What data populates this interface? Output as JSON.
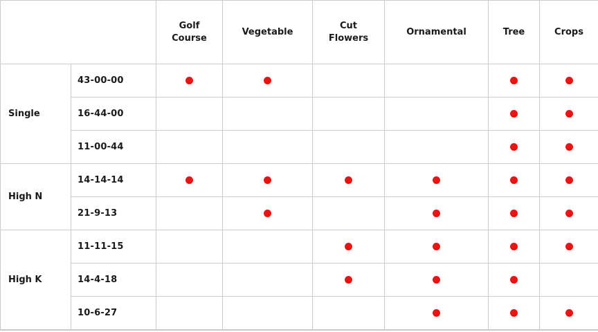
{
  "header": {
    "categories": [
      "Golf\nCourse",
      "Vegetable",
      "Cut\nFlowers",
      "Ornamental",
      "Tree",
      "Crops"
    ]
  },
  "groups": [
    {
      "label": "Single"
    },
    {
      "label": "High N"
    },
    {
      "label": "High K"
    }
  ],
  "rows": [
    {
      "group": "Single",
      "formula": "43-00-00",
      "dots": [
        true,
        true,
        false,
        false,
        true,
        true
      ]
    },
    {
      "group": "Single",
      "formula": "16-44-00",
      "dots": [
        false,
        false,
        false,
        false,
        true,
        true
      ]
    },
    {
      "group": "Single",
      "formula": "11-00-44",
      "dots": [
        false,
        false,
        false,
        false,
        true,
        true
      ]
    },
    {
      "group": "High N",
      "formula": "14-14-14",
      "dots": [
        true,
        true,
        true,
        true,
        true,
        true
      ]
    },
    {
      "group": "High N",
      "formula": "21-9-13",
      "dots": [
        false,
        true,
        false,
        true,
        true,
        true
      ]
    },
    {
      "group": "High K",
      "formula": "11-11-15",
      "dots": [
        false,
        false,
        true,
        true,
        true,
        true
      ]
    },
    {
      "group": "High K",
      "formula": "14-4-18",
      "dots": [
        false,
        false,
        true,
        true,
        true,
        false
      ]
    },
    {
      "group": "High K",
      "formula": "10-6-27",
      "dots": [
        false,
        false,
        false,
        true,
        true,
        true
      ]
    }
  ],
  "colors": {
    "dot_red": "#ee1111",
    "border_gray": "#cbcbcb",
    "text": "#1a1a1a"
  },
  "chart_data": {
    "type": "table",
    "title": "",
    "columns": [
      "Golf Course",
      "Vegetable",
      "Cut Flowers",
      "Ornamental",
      "Tree",
      "Crops"
    ],
    "row_groups": [
      "Single",
      "High N",
      "High K"
    ],
    "rows": [
      {
        "group": "Single",
        "formula": "43-00-00",
        "uses": [
          "Golf Course",
          "Vegetable",
          "Tree",
          "Crops"
        ]
      },
      {
        "group": "Single",
        "formula": "16-44-00",
        "uses": [
          "Tree",
          "Crops"
        ]
      },
      {
        "group": "Single",
        "formula": "11-00-44",
        "uses": [
          "Tree",
          "Crops"
        ]
      },
      {
        "group": "High N",
        "formula": "14-14-14",
        "uses": [
          "Golf Course",
          "Vegetable",
          "Cut Flowers",
          "Ornamental",
          "Tree",
          "Crops"
        ]
      },
      {
        "group": "High N",
        "formula": "21-9-13",
        "uses": [
          "Vegetable",
          "Ornamental",
          "Tree",
          "Crops"
        ]
      },
      {
        "group": "High K",
        "formula": "11-11-15",
        "uses": [
          "Cut Flowers",
          "Ornamental",
          "Tree",
          "Crops"
        ]
      },
      {
        "group": "High K",
        "formula": "14-4-18",
        "uses": [
          "Cut Flowers",
          "Ornamental",
          "Tree"
        ]
      },
      {
        "group": "High K",
        "formula": "10-6-27",
        "uses": [
          "Ornamental",
          "Tree",
          "Crops"
        ]
      }
    ],
    "legend": "red dot = fertilizer formula recommended for use category",
    "grid": true
  }
}
